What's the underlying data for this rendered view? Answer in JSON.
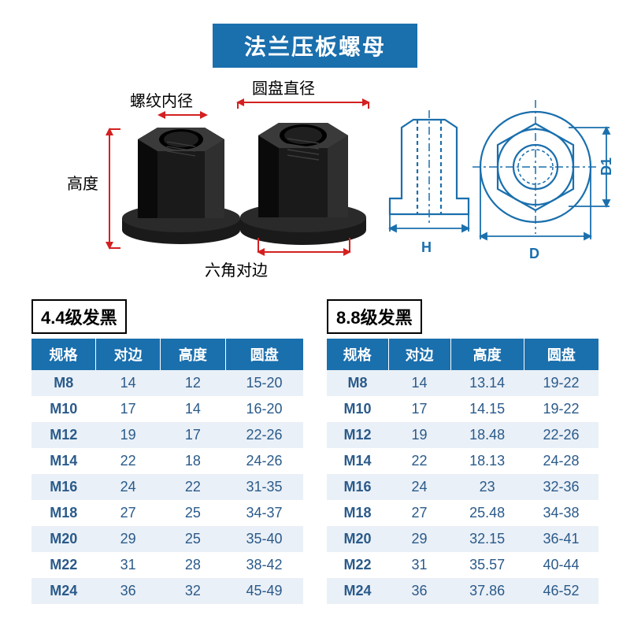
{
  "title": "法兰压板螺母",
  "labels": {
    "height": "高度",
    "thread_inner": "螺纹内径",
    "disc_diameter": "圆盘直径",
    "hex_flat": "六角对边",
    "H": "H",
    "D": "D",
    "D1": "D1"
  },
  "diagram": {
    "dim_color": "#d42020",
    "schematic_color": "#1a6fad",
    "nut_fill": "#1a1a1a",
    "nut_highlight": "#3a3a3a"
  },
  "tables": {
    "columns": [
      "规格",
      "对边",
      "高度",
      "圆盘"
    ],
    "left": {
      "title": "4.4级发黑",
      "rows": [
        [
          "M8",
          "14",
          "12",
          "15-20"
        ],
        [
          "M10",
          "17",
          "14",
          "16-20"
        ],
        [
          "M12",
          "19",
          "17",
          "22-26"
        ],
        [
          "M14",
          "22",
          "18",
          "24-26"
        ],
        [
          "M16",
          "24",
          "22",
          "31-35"
        ],
        [
          "M18",
          "27",
          "25",
          "34-37"
        ],
        [
          "M20",
          "29",
          "25",
          "35-40"
        ],
        [
          "M22",
          "31",
          "28",
          "38-42"
        ],
        [
          "M24",
          "36",
          "32",
          "45-49"
        ]
      ]
    },
    "right": {
      "title": "8.8级发黑",
      "rows": [
        [
          "M8",
          "14",
          "13.14",
          "19-22"
        ],
        [
          "M10",
          "17",
          "14.15",
          "19-22"
        ],
        [
          "M12",
          "19",
          "18.48",
          "22-26"
        ],
        [
          "M14",
          "22",
          "18.13",
          "24-28"
        ],
        [
          "M16",
          "24",
          "23",
          "32-36"
        ],
        [
          "M18",
          "27",
          "25.48",
          "34-38"
        ],
        [
          "M20",
          "29",
          "32.15",
          "36-41"
        ],
        [
          "M22",
          "31",
          "35.57",
          "40-44"
        ],
        [
          "M24",
          "36",
          "37.86",
          "46-52"
        ]
      ]
    }
  },
  "style": {
    "banner_bg": "#1a6fad",
    "banner_fg": "#ffffff",
    "header_bg": "#1a6fad",
    "header_fg": "#ffffff",
    "row_odd_bg": "#eaf0f7",
    "row_even_bg": "#ffffff",
    "cell_fg": "#2a5a8a",
    "title_fontsize": 28,
    "table_fontsize": 18,
    "label_fontsize": 20
  }
}
